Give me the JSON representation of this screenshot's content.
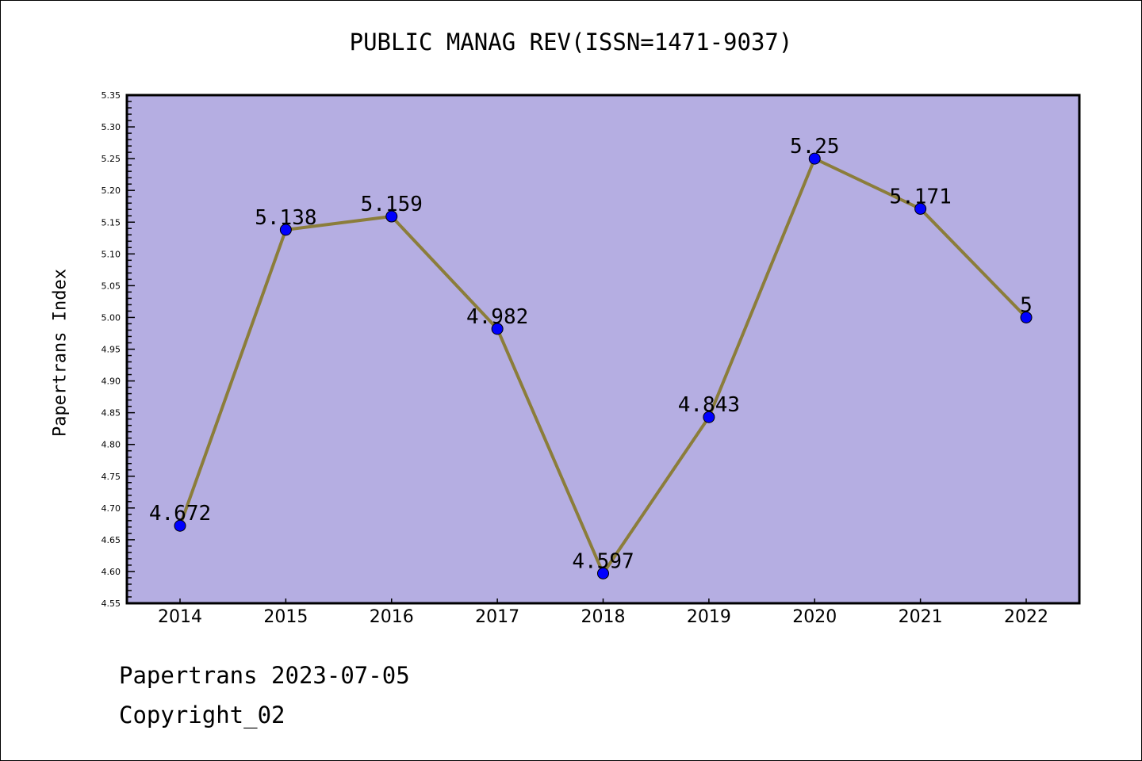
{
  "chart_data": {
    "type": "line",
    "title": "PUBLIC MANAG REV(ISSN=1471-9037)",
    "xlabel": "",
    "ylabel": "Papertrans Index",
    "categories": [
      "2014",
      "2015",
      "2016",
      "2017",
      "2018",
      "2019",
      "2020",
      "2021",
      "2022"
    ],
    "values": [
      4.672,
      5.138,
      5.159,
      4.982,
      4.597,
      4.843,
      5.25,
      5.171,
      5
    ],
    "data_labels": [
      "4.672",
      "5.138",
      "5.159",
      "4.982",
      "4.597",
      "4.843",
      "5.25",
      "5.171",
      "5"
    ],
    "ylim": [
      4.55,
      5.35
    ],
    "yticks": [
      "4.55",
      "4.60",
      "4.65",
      "4.70",
      "4.75",
      "4.80",
      "4.85",
      "4.90",
      "4.95",
      "5.00",
      "5.05",
      "5.10",
      "5.15",
      "5.20",
      "5.25",
      "5.30",
      "5.35"
    ],
    "grid": false,
    "colors": {
      "background": "#b5aee2",
      "line": "#8b7d3a",
      "marker": "#0000ff"
    }
  },
  "footer": {
    "line1": "Papertrans 2023-07-05",
    "line2": "Copyright_02"
  }
}
